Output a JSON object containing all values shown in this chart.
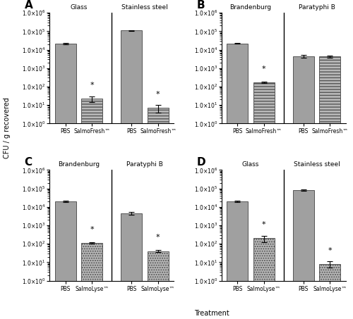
{
  "panels": {
    "A": {
      "label": "A",
      "groups": [
        "Glass",
        "Stainless steel"
      ],
      "xticklabels": [
        "PBS",
        "SalmoFresh™",
        "PBS",
        "SalmoFresh™"
      ],
      "values": [
        22000.0,
        22.0,
        110000.0,
        7.0
      ],
      "errors": [
        2000,
        8,
        5000,
        3
      ],
      "asterisk": [
        false,
        true,
        false,
        true
      ],
      "ylim": [
        1.0,
        1000000.0
      ],
      "yticks": [
        1.0,
        10.0,
        100.0,
        1000.0,
        10000.0,
        100000.0,
        1000000.0
      ],
      "hatch": [
        "",
        "horizontal",
        "",
        "horizontal"
      ]
    },
    "B": {
      "label": "B",
      "groups": [
        "Brandenburg",
        "Paratyphi B"
      ],
      "xticklabels": [
        "PBS",
        "SalmoFresh™",
        "PBS",
        "SalmoFresh™"
      ],
      "values": [
        22000.0,
        170.0,
        4500.0,
        4200.0
      ],
      "errors": [
        1000,
        15,
        700,
        600
      ],
      "asterisk": [
        false,
        true,
        false,
        false
      ],
      "ylim": [
        1.0,
        1000000.0
      ],
      "yticks": [
        1.0,
        10.0,
        100.0,
        1000.0,
        10000.0,
        100000.0,
        1000000.0
      ],
      "hatch": [
        "",
        "horizontal",
        "",
        "horizontal"
      ]
    },
    "C": {
      "label": "C",
      "groups": [
        "Brandenburg",
        "Paratyphi B"
      ],
      "xticklabels": [
        "PBS",
        "SalmoLyse™",
        "PBS",
        "SalmoLyse™"
      ],
      "values": [
        20000.0,
        110.0,
        4500.0,
        40.0
      ],
      "errors": [
        1200,
        8,
        900,
        5
      ],
      "asterisk": [
        false,
        true,
        false,
        true
      ],
      "ylim": [
        1.0,
        1000000.0
      ],
      "yticks": [
        1.0,
        10.0,
        100.0,
        1000.0,
        10000.0,
        100000.0,
        1000000.0
      ],
      "hatch": [
        "",
        "dotted",
        "",
        "dotted"
      ]
    },
    "D": {
      "label": "D",
      "groups": [
        "Glass",
        "Stainless steel"
      ],
      "xticklabels": [
        "PBS",
        "SalmoLyse™",
        "PBS",
        "SalmoLyse™"
      ],
      "values": [
        20000.0,
        200.0,
        80000.0,
        8.0
      ],
      "errors": [
        2500,
        80,
        8000,
        3
      ],
      "asterisk": [
        false,
        true,
        false,
        true
      ],
      "ylim": [
        1.0,
        1000000.0
      ],
      "yticks": [
        1.0,
        10.0,
        100.0,
        1000.0,
        10000.0,
        100000.0,
        1000000.0
      ],
      "hatch": [
        "",
        "dotted",
        "",
        "dotted"
      ]
    }
  },
  "bar_color_solid": "#a0a0a0",
  "bar_color_hatch": "#b8b8b8",
  "bar_edgecolor": "#555555",
  "ylabel": "CFU / g recovered",
  "xlabel": "Treatment"
}
